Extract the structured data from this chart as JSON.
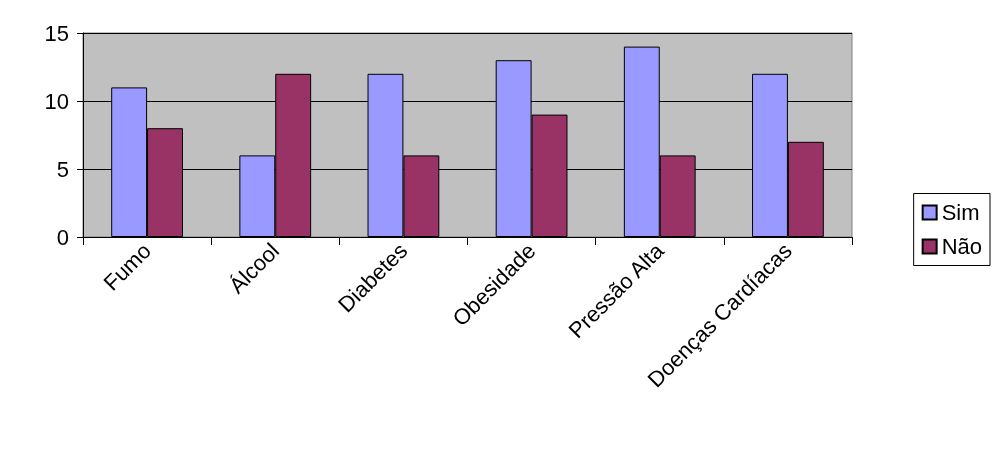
{
  "chart_data": {
    "type": "bar",
    "categories": [
      "Fumo",
      "Álcool",
      "Diabetes",
      "Obesidade",
      "Pressão Alta",
      "Doenças Cardíacas"
    ],
    "series": [
      {
        "name": "Sim",
        "color": "#9999ff",
        "values": [
          11,
          6,
          12,
          13,
          14,
          12
        ]
      },
      {
        "name": "Não",
        "color": "#993366",
        "values": [
          8,
          12,
          6,
          9,
          6,
          7
        ]
      }
    ],
    "ylim": [
      0,
      15
    ],
    "yticks": [
      0,
      5,
      10,
      15
    ],
    "grid": "y",
    "legend": "right"
  }
}
